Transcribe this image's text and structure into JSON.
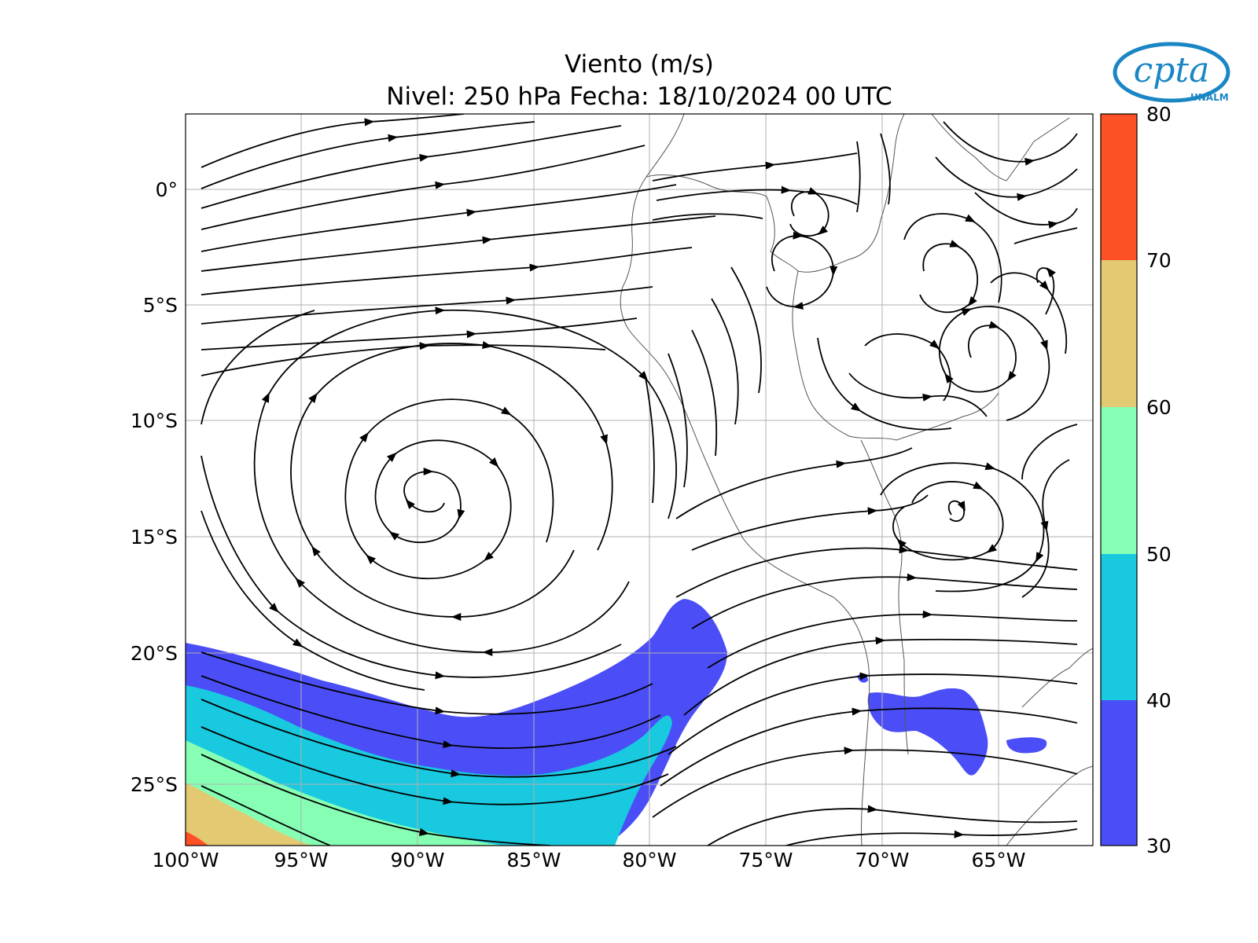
{
  "title": {
    "line1": "Viento (m/s)",
    "line2": "Nivel: 250 hPa Fecha: 18/10/2024 00 UTC"
  },
  "axes": {
    "x_ticks": [
      "100°W",
      "95°W",
      "90°W",
      "85°W",
      "80°W",
      "75°W",
      "70°W",
      "65°W"
    ],
    "y_ticks": [
      "0°",
      "5°S",
      "10°S",
      "15°S",
      "20°S",
      "25°S"
    ]
  },
  "colorbar": {
    "ticks": [
      "80",
      "70",
      "60",
      "50",
      "40",
      "30"
    ],
    "colors": [
      "#4b4ef6",
      "#19c9e0",
      "#86ffb4",
      "#e3c972",
      "#fe5025"
    ]
  },
  "logo": {
    "text": "cpta",
    "sub": "UNALM",
    "color": "#1a86c4"
  },
  "chart_data": {
    "type": "heatmap",
    "variable": "Viento",
    "unit": "m/s",
    "level": "250 hPa",
    "date": "18/10/2024 00 UTC",
    "xlim": [
      -100,
      -61
    ],
    "ylim": [
      -28,
      3
    ],
    "color_levels": [
      30,
      40,
      50,
      60,
      70,
      80
    ],
    "features": [
      "wind streamlines",
      "coastlines",
      "country borders",
      "lat/lon grid"
    ],
    "grid": true
  }
}
